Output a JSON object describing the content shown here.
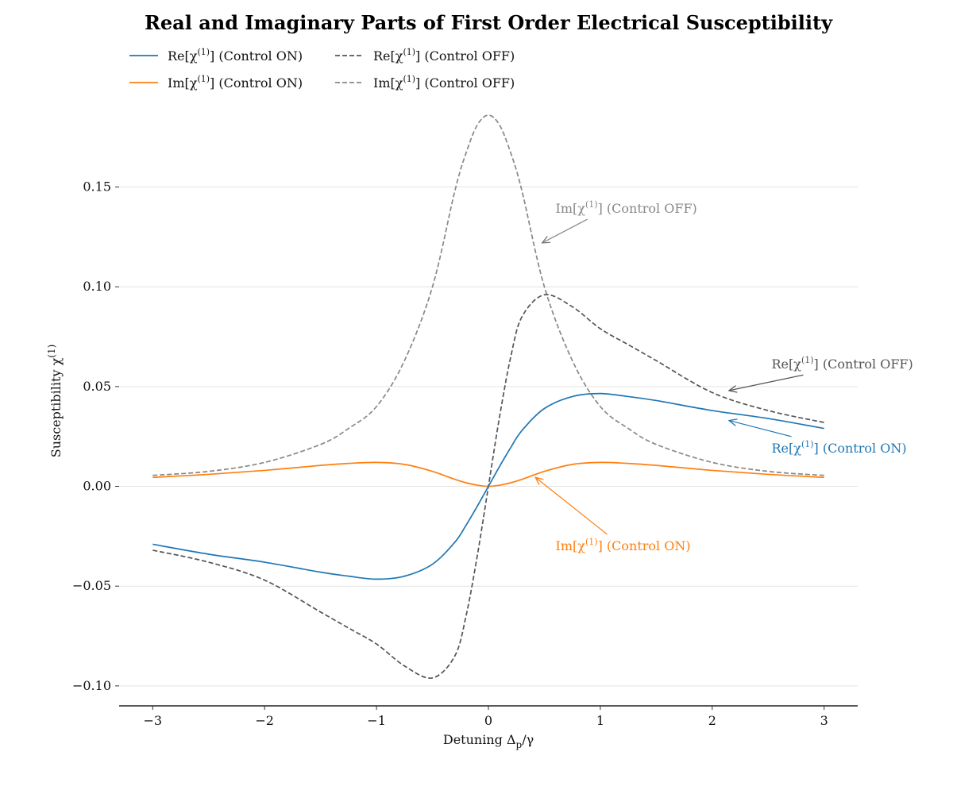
{
  "chart_data": {
    "type": "line",
    "title": "Real and Imaginary Parts of First Order Electrical Susceptibility",
    "xlabel": "Detuning Δp/γ",
    "ylabel": "Susceptibility χ(1)",
    "xlim": [
      -3.3,
      3.3
    ],
    "ylim": [
      -0.11,
      0.19
    ],
    "xticks": [
      -3,
      -2,
      -1,
      0,
      1,
      2,
      3
    ],
    "xtick_labels": [
      "−3",
      "−2",
      "−1",
      "0",
      "1",
      "2",
      "3"
    ],
    "yticks": [
      -0.1,
      -0.05,
      0.0,
      0.05,
      0.1,
      0.15
    ],
    "ytick_labels": [
      "−0.10",
      "−0.05",
      "0.00",
      "0.05",
      "0.10",
      "0.15"
    ],
    "grid": "horizontal",
    "legend_position": "top-left",
    "x": [
      -3.0,
      -2.5,
      -2.0,
      -1.5,
      -1.25,
      -1.0,
      -0.75,
      -0.5,
      -0.3,
      -0.2,
      -0.1,
      0.0,
      0.1,
      0.2,
      0.3,
      0.5,
      0.75,
      1.0,
      1.25,
      1.5,
      2.0,
      2.5,
      3.0
    ],
    "series": [
      {
        "name": "Re[χ(1)] (Control ON)",
        "color": "#1f77b4",
        "style": "solid",
        "values": [
          -0.029,
          -0.034,
          -0.038,
          -0.043,
          -0.045,
          -0.0465,
          -0.045,
          -0.039,
          -0.028,
          -0.0195,
          -0.01,
          0.0,
          0.01,
          0.0195,
          0.028,
          0.039,
          0.045,
          0.0465,
          0.045,
          0.043,
          0.038,
          0.034,
          0.029
        ]
      },
      {
        "name": "Im[χ(1)] (Control ON)",
        "color": "#ff7f0e",
        "style": "solid",
        "values": [
          0.0045,
          0.006,
          0.008,
          0.0105,
          0.0115,
          0.012,
          0.011,
          0.0075,
          0.0035,
          0.0018,
          0.0006,
          0.0,
          0.0006,
          0.0018,
          0.0035,
          0.0075,
          0.011,
          0.012,
          0.0115,
          0.0105,
          0.008,
          0.006,
          0.0045
        ]
      },
      {
        "name": "Re[χ(1)] (Control OFF)",
        "color": "#555555",
        "style": "dashed",
        "values": [
          -0.032,
          -0.038,
          -0.047,
          -0.063,
          -0.071,
          -0.079,
          -0.09,
          -0.096,
          -0.085,
          -0.065,
          -0.035,
          0.0,
          0.035,
          0.065,
          0.085,
          0.096,
          0.09,
          0.079,
          0.071,
          0.063,
          0.047,
          0.038,
          0.032
        ]
      },
      {
        "name": "Im[χ(1)] (Control OFF)",
        "color": "#888888",
        "style": "dashed",
        "values": [
          0.0055,
          0.0075,
          0.012,
          0.021,
          0.029,
          0.04,
          0.063,
          0.1,
          0.148,
          0.167,
          0.181,
          0.186,
          0.181,
          0.167,
          0.148,
          0.1,
          0.063,
          0.04,
          0.029,
          0.021,
          0.012,
          0.0075,
          0.0055
        ]
      }
    ],
    "annotations": [
      {
        "text": "Im[χ(1)] (Control OFF)",
        "series": 3,
        "xy": [
          0.48,
          0.122
        ],
        "text_xy": [
          0.6,
          0.137
        ]
      },
      {
        "text": "Re[χ(1)] (Control OFF)",
        "series": 2,
        "xy": [
          2.15,
          0.048
        ],
        "text_xy": [
          2.53,
          0.059
        ]
      },
      {
        "text": "Re[χ(1)] (Control ON)",
        "series": 0,
        "xy": [
          2.15,
          0.033
        ],
        "text_xy": [
          2.53,
          0.017
        ]
      },
      {
        "text": "Im[χ(1)] (Control ON)",
        "series": 1,
        "xy": [
          0.42,
          0.0045
        ],
        "text_xy": [
          0.6,
          -0.032
        ]
      }
    ]
  }
}
